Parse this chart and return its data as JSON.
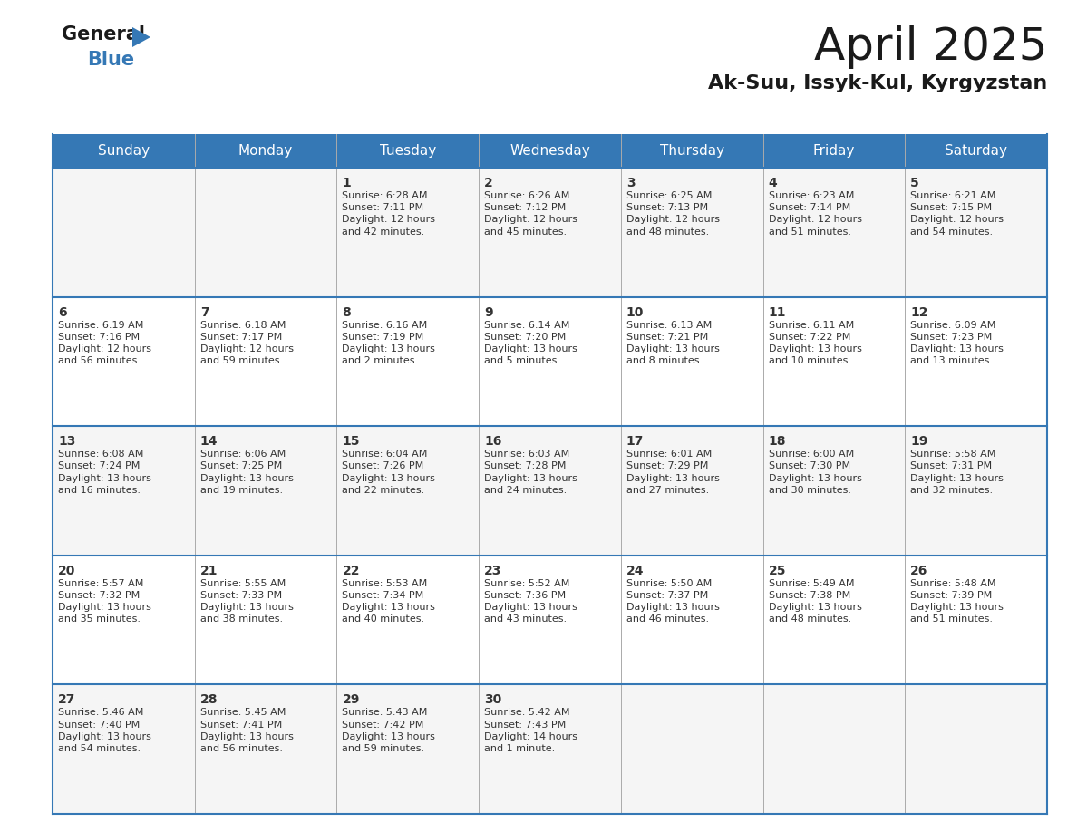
{
  "title": "April 2025",
  "subtitle": "Ak-Suu, Issyk-Kul, Kyrgyzstan",
  "header_color": "#3578b5",
  "header_text_color": "#ffffff",
  "border_color": "#3578b5",
  "row_line_color": "#3578b5",
  "text_color": "#333333",
  "day_num_color": "#333333",
  "cell_bg_light": "#f5f5f5",
  "cell_bg_white": "#ffffff",
  "days_of_week": [
    "Sunday",
    "Monday",
    "Tuesday",
    "Wednesday",
    "Thursday",
    "Friday",
    "Saturday"
  ],
  "weeks": [
    [
      {
        "day": "",
        "info": ""
      },
      {
        "day": "",
        "info": ""
      },
      {
        "day": "1",
        "info": "Sunrise: 6:28 AM\nSunset: 7:11 PM\nDaylight: 12 hours\nand 42 minutes."
      },
      {
        "day": "2",
        "info": "Sunrise: 6:26 AM\nSunset: 7:12 PM\nDaylight: 12 hours\nand 45 minutes."
      },
      {
        "day": "3",
        "info": "Sunrise: 6:25 AM\nSunset: 7:13 PM\nDaylight: 12 hours\nand 48 minutes."
      },
      {
        "day": "4",
        "info": "Sunrise: 6:23 AM\nSunset: 7:14 PM\nDaylight: 12 hours\nand 51 minutes."
      },
      {
        "day": "5",
        "info": "Sunrise: 6:21 AM\nSunset: 7:15 PM\nDaylight: 12 hours\nand 54 minutes."
      }
    ],
    [
      {
        "day": "6",
        "info": "Sunrise: 6:19 AM\nSunset: 7:16 PM\nDaylight: 12 hours\nand 56 minutes."
      },
      {
        "day": "7",
        "info": "Sunrise: 6:18 AM\nSunset: 7:17 PM\nDaylight: 12 hours\nand 59 minutes."
      },
      {
        "day": "8",
        "info": "Sunrise: 6:16 AM\nSunset: 7:19 PM\nDaylight: 13 hours\nand 2 minutes."
      },
      {
        "day": "9",
        "info": "Sunrise: 6:14 AM\nSunset: 7:20 PM\nDaylight: 13 hours\nand 5 minutes."
      },
      {
        "day": "10",
        "info": "Sunrise: 6:13 AM\nSunset: 7:21 PM\nDaylight: 13 hours\nand 8 minutes."
      },
      {
        "day": "11",
        "info": "Sunrise: 6:11 AM\nSunset: 7:22 PM\nDaylight: 13 hours\nand 10 minutes."
      },
      {
        "day": "12",
        "info": "Sunrise: 6:09 AM\nSunset: 7:23 PM\nDaylight: 13 hours\nand 13 minutes."
      }
    ],
    [
      {
        "day": "13",
        "info": "Sunrise: 6:08 AM\nSunset: 7:24 PM\nDaylight: 13 hours\nand 16 minutes."
      },
      {
        "day": "14",
        "info": "Sunrise: 6:06 AM\nSunset: 7:25 PM\nDaylight: 13 hours\nand 19 minutes."
      },
      {
        "day": "15",
        "info": "Sunrise: 6:04 AM\nSunset: 7:26 PM\nDaylight: 13 hours\nand 22 minutes."
      },
      {
        "day": "16",
        "info": "Sunrise: 6:03 AM\nSunset: 7:28 PM\nDaylight: 13 hours\nand 24 minutes."
      },
      {
        "day": "17",
        "info": "Sunrise: 6:01 AM\nSunset: 7:29 PM\nDaylight: 13 hours\nand 27 minutes."
      },
      {
        "day": "18",
        "info": "Sunrise: 6:00 AM\nSunset: 7:30 PM\nDaylight: 13 hours\nand 30 minutes."
      },
      {
        "day": "19",
        "info": "Sunrise: 5:58 AM\nSunset: 7:31 PM\nDaylight: 13 hours\nand 32 minutes."
      }
    ],
    [
      {
        "day": "20",
        "info": "Sunrise: 5:57 AM\nSunset: 7:32 PM\nDaylight: 13 hours\nand 35 minutes."
      },
      {
        "day": "21",
        "info": "Sunrise: 5:55 AM\nSunset: 7:33 PM\nDaylight: 13 hours\nand 38 minutes."
      },
      {
        "day": "22",
        "info": "Sunrise: 5:53 AM\nSunset: 7:34 PM\nDaylight: 13 hours\nand 40 minutes."
      },
      {
        "day": "23",
        "info": "Sunrise: 5:52 AM\nSunset: 7:36 PM\nDaylight: 13 hours\nand 43 minutes."
      },
      {
        "day": "24",
        "info": "Sunrise: 5:50 AM\nSunset: 7:37 PM\nDaylight: 13 hours\nand 46 minutes."
      },
      {
        "day": "25",
        "info": "Sunrise: 5:49 AM\nSunset: 7:38 PM\nDaylight: 13 hours\nand 48 minutes."
      },
      {
        "day": "26",
        "info": "Sunrise: 5:48 AM\nSunset: 7:39 PM\nDaylight: 13 hours\nand 51 minutes."
      }
    ],
    [
      {
        "day": "27",
        "info": "Sunrise: 5:46 AM\nSunset: 7:40 PM\nDaylight: 13 hours\nand 54 minutes."
      },
      {
        "day": "28",
        "info": "Sunrise: 5:45 AM\nSunset: 7:41 PM\nDaylight: 13 hours\nand 56 minutes."
      },
      {
        "day": "29",
        "info": "Sunrise: 5:43 AM\nSunset: 7:42 PM\nDaylight: 13 hours\nand 59 minutes."
      },
      {
        "day": "30",
        "info": "Sunrise: 5:42 AM\nSunset: 7:43 PM\nDaylight: 14 hours\nand 1 minute."
      },
      {
        "day": "",
        "info": ""
      },
      {
        "day": "",
        "info": ""
      },
      {
        "day": "",
        "info": ""
      }
    ]
  ],
  "title_fontsize": 36,
  "subtitle_fontsize": 16,
  "header_fontsize": 11,
  "day_num_fontsize": 10,
  "info_fontsize": 8
}
